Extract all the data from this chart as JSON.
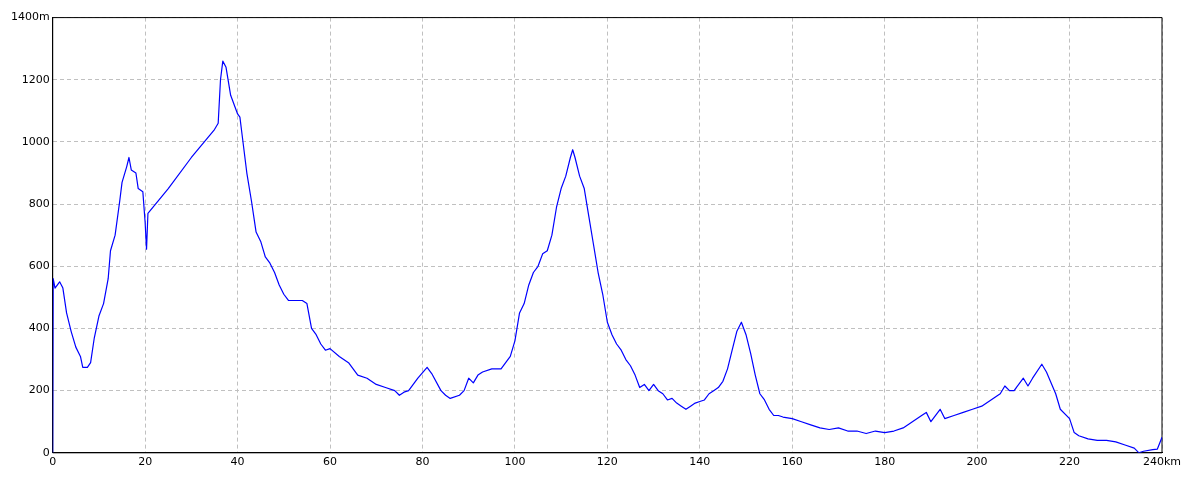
{
  "chart_data": {
    "type": "line",
    "grid": true,
    "legend": false,
    "marker": "none",
    "line_style": "solid",
    "xlim": [
      0,
      240
    ],
    "ylim": [
      0,
      1400
    ],
    "xticks": [
      0,
      20,
      40,
      60,
      80,
      100,
      120,
      140,
      160,
      180,
      200,
      220,
      {
        "value": 240,
        "label": "240km"
      }
    ],
    "yticks": [
      0,
      200,
      400,
      600,
      800,
      1000,
      1200,
      {
        "value": 1400,
        "label": "1400m"
      }
    ],
    "series": [
      {
        "color": "#0000ff",
        "x": [
          0,
          0.1,
          0.5,
          1.5,
          2.2,
          3,
          4,
          5,
          6,
          6.5,
          7.5,
          8.2,
          9,
          10,
          11,
          12,
          12.5,
          13.5,
          14.5,
          15,
          16,
          16.5,
          17,
          18,
          18.5,
          19.5,
          20,
          20.3,
          20.6,
          25,
          30,
          35,
          35.8,
          36.3,
          36.8,
          37.5,
          38.5,
          40,
          40.5,
          41,
          42,
          43,
          44,
          45,
          46,
          47,
          48,
          49,
          50,
          51,
          52,
          54,
          55,
          56,
          57,
          58,
          59,
          60,
          62,
          64,
          66,
          68,
          70,
          72,
          74,
          75,
          76,
          77,
          79,
          81,
          82,
          84,
          85,
          86,
          88,
          89,
          90,
          91,
          92,
          93,
          95,
          97,
          98,
          99,
          100,
          101,
          102,
          103,
          104,
          105,
          106,
          107,
          108,
          109,
          110,
          111,
          112,
          112.5,
          113,
          114,
          115,
          116,
          117,
          118,
          119,
          120,
          121,
          122,
          123,
          124,
          125,
          126,
          127,
          128,
          129,
          130,
          131,
          132,
          133,
          134,
          135,
          136,
          137,
          138,
          139,
          140,
          141,
          142,
          143,
          144,
          145,
          146,
          147,
          148,
          149,
          150,
          151,
          152,
          153,
          154,
          155,
          156,
          157,
          158,
          160,
          162,
          164,
          166,
          168,
          170,
          172,
          174,
          176,
          178,
          180,
          182,
          184,
          186,
          188,
          189,
          190,
          192,
          193,
          195,
          197,
          199,
          201,
          203,
          205,
          206,
          207,
          208,
          210,
          211,
          212,
          214,
          215,
          217,
          218,
          220,
          221,
          222,
          224,
          226,
          228,
          230,
          232,
          234,
          235,
          236,
          238,
          239,
          240
        ],
        "values": [
          0,
          560,
          530,
          550,
          530,
          450,
          390,
          340,
          310,
          275,
          275,
          290,
          370,
          440,
          480,
          560,
          650,
          700,
          810,
          870,
          920,
          950,
          910,
          900,
          850,
          840,
          740,
          655,
          770,
          850,
          950,
          1040,
          1060,
          1200,
          1260,
          1240,
          1150,
          1090,
          1080,
          1020,
          900,
          810,
          710,
          680,
          630,
          610,
          580,
          540,
          510,
          490,
          490,
          490,
          480,
          400,
          380,
          350,
          330,
          335,
          310,
          290,
          250,
          240,
          220,
          210,
          200,
          185,
          195,
          200,
          240,
          275,
          255,
          200,
          185,
          175,
          185,
          200,
          240,
          225,
          250,
          260,
          270,
          270,
          290,
          310,
          360,
          450,
          480,
          540,
          580,
          600,
          640,
          650,
          700,
          790,
          850,
          890,
          950,
          975,
          950,
          890,
          850,
          760,
          670,
          580,
          510,
          420,
          380,
          350,
          330,
          300,
          280,
          250,
          210,
          220,
          200,
          220,
          200,
          190,
          170,
          175,
          160,
          150,
          140,
          150,
          160,
          165,
          170,
          190,
          200,
          210,
          230,
          270,
          330,
          390,
          420,
          380,
          320,
          250,
          190,
          170,
          140,
          120,
          120,
          115,
          110,
          100,
          90,
          80,
          75,
          80,
          70,
          70,
          62,
          70,
          65,
          70,
          80,
          100,
          120,
          130,
          100,
          140,
          110,
          120,
          130,
          140,
          150,
          170,
          190,
          215,
          200,
          200,
          240,
          215,
          240,
          285,
          260,
          190,
          140,
          110,
          65,
          55,
          45,
          40,
          40,
          35,
          25,
          15,
          0,
          5,
          10,
          12,
          50
        ]
      }
    ]
  }
}
